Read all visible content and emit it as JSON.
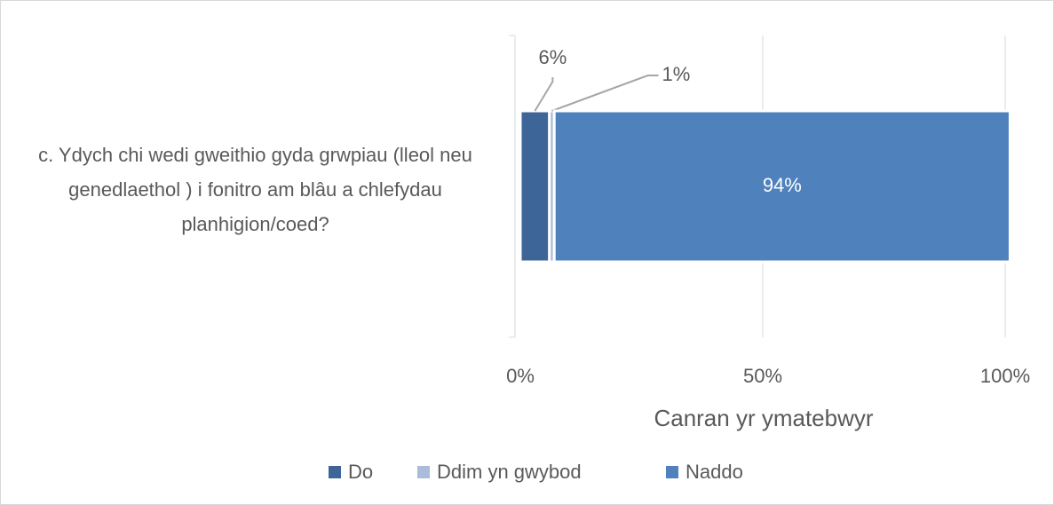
{
  "chart_data": {
    "type": "stacked_barh",
    "categories": [
      "c. Ydych chi wedi gweithio gyda grwpiau (lleol neu genedlaethol ) i fonitro am blâu a chlefydau planhigion/coed?"
    ],
    "series": [
      {
        "name": "Do",
        "color": "#3e6598",
        "values": [
          6
        ],
        "value_labels": [
          "6%"
        ]
      },
      {
        "name": "Ddim yn gwybod",
        "color": "#a9bcd9",
        "values": [
          1
        ],
        "value_labels": [
          "1%"
        ]
      },
      {
        "name": "Naddo",
        "color": "#4f81bd",
        "values": [
          94
        ],
        "value_labels": [
          "94%"
        ]
      }
    ],
    "xlabel": "Canran yr ymatebwyr",
    "xlim": [
      0,
      100
    ],
    "xticks": [
      {
        "value": 0,
        "label": "0%"
      },
      {
        "value": 50,
        "label": "50%"
      },
      {
        "value": 100,
        "label": "100%"
      }
    ],
    "grid": true,
    "legend": "bottom"
  }
}
